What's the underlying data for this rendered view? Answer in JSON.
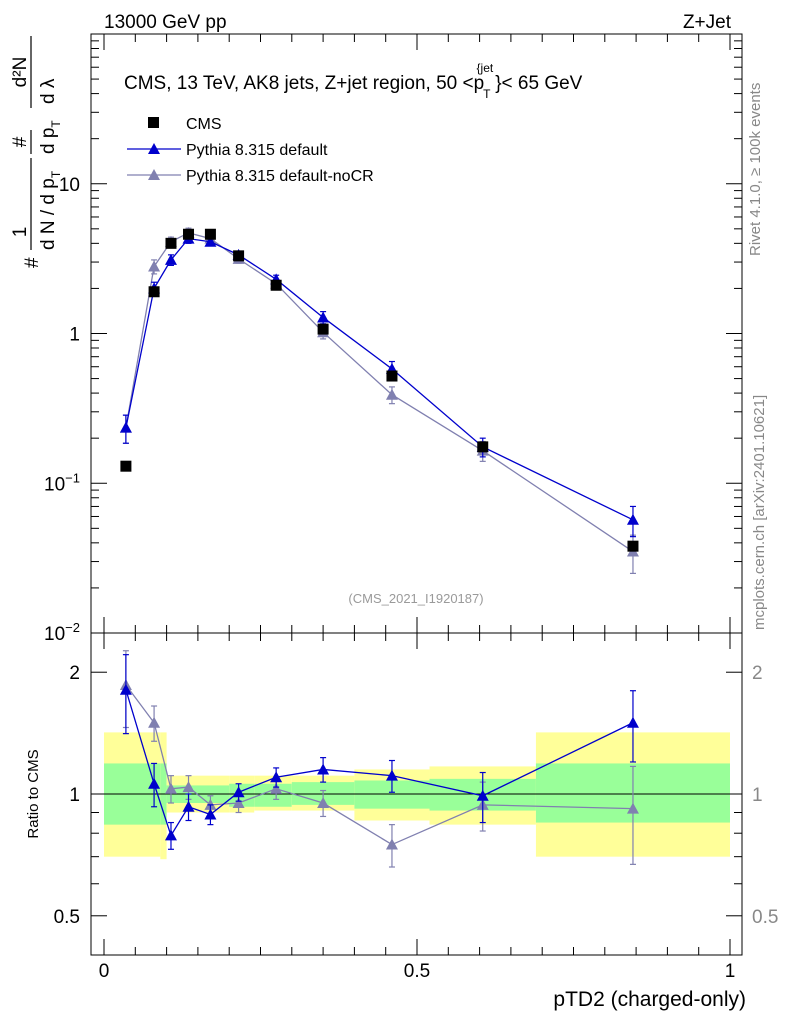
{
  "header": {
    "left": "13000 GeV pp",
    "right": "Z+Jet"
  },
  "plot_title": {
    "main": "CMS, 13 TeV, AK8 jets, Z+jet region, 50 <p",
    "sub": "T",
    "sup": "{jet",
    "tail": "}< 65 GeV"
  },
  "side_labels": {
    "rivet": "Rivet 4.1.0, ≥ 100k events",
    "mcplots": "mcplots.cern.ch [arXiv:2401.10621]"
  },
  "watermark": "(CMS_2021_I1920187)",
  "ylabel_top": {
    "hash": "#",
    "one": "1",
    "frac1_den": "d N / d p",
    "frac2_num": "#",
    "frac2_den": "d p",
    "frac3_num": "d²N",
    "frac3_den": "d λ",
    "sub_t": "T"
  },
  "chart_data": [
    {
      "type": "scatter",
      "panel": "main",
      "xlabel": "pTD2 (charged-only)",
      "yscale": "log",
      "xlim": [
        0,
        1
      ],
      "ylim": [
        0.01,
        100
      ],
      "y_ticks": [
        {
          "value": 0.01,
          "label": "10",
          "exp": "−2"
        },
        {
          "value": 0.1,
          "label": "10",
          "exp": "−1"
        },
        {
          "value": 1,
          "label": "1",
          "exp": ""
        },
        {
          "value": 10,
          "label": "10",
          "exp": ""
        }
      ],
      "legend_position": "top-left",
      "series": [
        {
          "name": "CMS",
          "color": "#000000",
          "marker": "square",
          "x": [
            0.035,
            0.08,
            0.107,
            0.135,
            0.17,
            0.215,
            0.275,
            0.35,
            0.46,
            0.605,
            0.845
          ],
          "y": [
            0.13,
            1.9,
            4.0,
            4.6,
            4.6,
            3.3,
            2.1,
            1.07,
            0.52,
            0.175,
            0.038
          ],
          "yerr": [
            0,
            0,
            0,
            0,
            0,
            0,
            0,
            0,
            0,
            0,
            0
          ]
        },
        {
          "name": "Pythia 8.315 default",
          "color": "#0000cc",
          "marker": "triangle",
          "x": [
            0.035,
            0.08,
            0.107,
            0.135,
            0.17,
            0.215,
            0.275,
            0.35,
            0.46,
            0.605,
            0.845
          ],
          "y": [
            0.235,
            2.0,
            3.1,
            4.3,
            4.1,
            3.35,
            2.3,
            1.28,
            0.58,
            0.175,
            0.057
          ],
          "yerr": [
            0.05,
            0.2,
            0.25,
            0.3,
            0.25,
            0.2,
            0.15,
            0.12,
            0.07,
            0.025,
            0.013
          ]
        },
        {
          "name": "Pythia 8.315 default-noCR",
          "color": "#8080b0",
          "marker": "triangle",
          "x": [
            0.035,
            0.08,
            0.107,
            0.135,
            0.17,
            0.215,
            0.275,
            0.35,
            0.46,
            0.605,
            0.845
          ],
          "y": [
            0.235,
            2.8,
            4.1,
            4.7,
            4.3,
            3.15,
            2.15,
            1.02,
            0.39,
            0.165,
            0.035
          ],
          "yerr": [
            0.05,
            0.3,
            0.3,
            0.35,
            0.25,
            0.2,
            0.15,
            0.1,
            0.05,
            0.025,
            0.01
          ]
        }
      ]
    },
    {
      "type": "line",
      "panel": "ratio",
      "ylabel": "Ratio to CMS",
      "yscale": "log",
      "xlim": [
        0,
        1
      ],
      "ylim": [
        0.4,
        2.5
      ],
      "x_ticks": [
        {
          "value": 0,
          "label": "0"
        },
        {
          "value": 0.5,
          "label": "0.5"
        },
        {
          "value": 1,
          "label": "1"
        }
      ],
      "y_ticks": [
        {
          "value": 0.5,
          "label": "0.5"
        },
        {
          "value": 1,
          "label": "1"
        },
        {
          "value": 2,
          "label": "2"
        }
      ],
      "bands": {
        "edges": [
          0,
          0.09,
          0.1,
          0.2,
          0.24,
          0.3,
          0.4,
          0.52,
          0.69,
          1.0
        ],
        "inner_lo": [
          0.84,
          0.84,
          0.95,
          0.93,
          0.93,
          0.94,
          0.92,
          0.91,
          0.85
        ],
        "inner_hi": [
          1.19,
          1.19,
          1.05,
          1.06,
          1.06,
          1.07,
          1.08,
          1.09,
          1.19
        ],
        "outer_lo": [
          0.7,
          0.69,
          0.9,
          0.9,
          0.91,
          0.91,
          0.86,
          0.84,
          0.7
        ],
        "outer_hi": [
          1.42,
          1.42,
          1.11,
          1.11,
          1.11,
          1.11,
          1.15,
          1.17,
          1.42
        ],
        "inner_color": "#99ff99",
        "outer_color": "#ffff99"
      },
      "series": [
        {
          "name": "Pythia 8.315 default",
          "color": "#0000cc",
          "x": [
            0.035,
            0.08,
            0.107,
            0.135,
            0.17,
            0.215,
            0.275,
            0.35,
            0.46,
            0.605,
            0.845
          ],
          "y": [
            1.81,
            1.06,
            0.79,
            0.93,
            0.89,
            1.01,
            1.1,
            1.15,
            1.11,
            0.99,
            1.5
          ],
          "yerr": [
            0.4,
            0.13,
            0.06,
            0.07,
            0.05,
            0.05,
            0.06,
            0.08,
            0.1,
            0.14,
            0.3
          ]
        },
        {
          "name": "Pythia 8.315 default-noCR",
          "color": "#8080b0",
          "x": [
            0.035,
            0.08,
            0.107,
            0.135,
            0.17,
            0.215,
            0.275,
            0.35,
            0.46,
            0.605,
            0.845
          ],
          "y": [
            1.86,
            1.5,
            1.03,
            1.04,
            0.94,
            0.95,
            1.03,
            0.95,
            0.75,
            0.94,
            0.92
          ],
          "yerr": [
            0.4,
            0.15,
            0.08,
            0.07,
            0.05,
            0.05,
            0.06,
            0.07,
            0.09,
            0.13,
            0.25
          ]
        }
      ]
    }
  ]
}
